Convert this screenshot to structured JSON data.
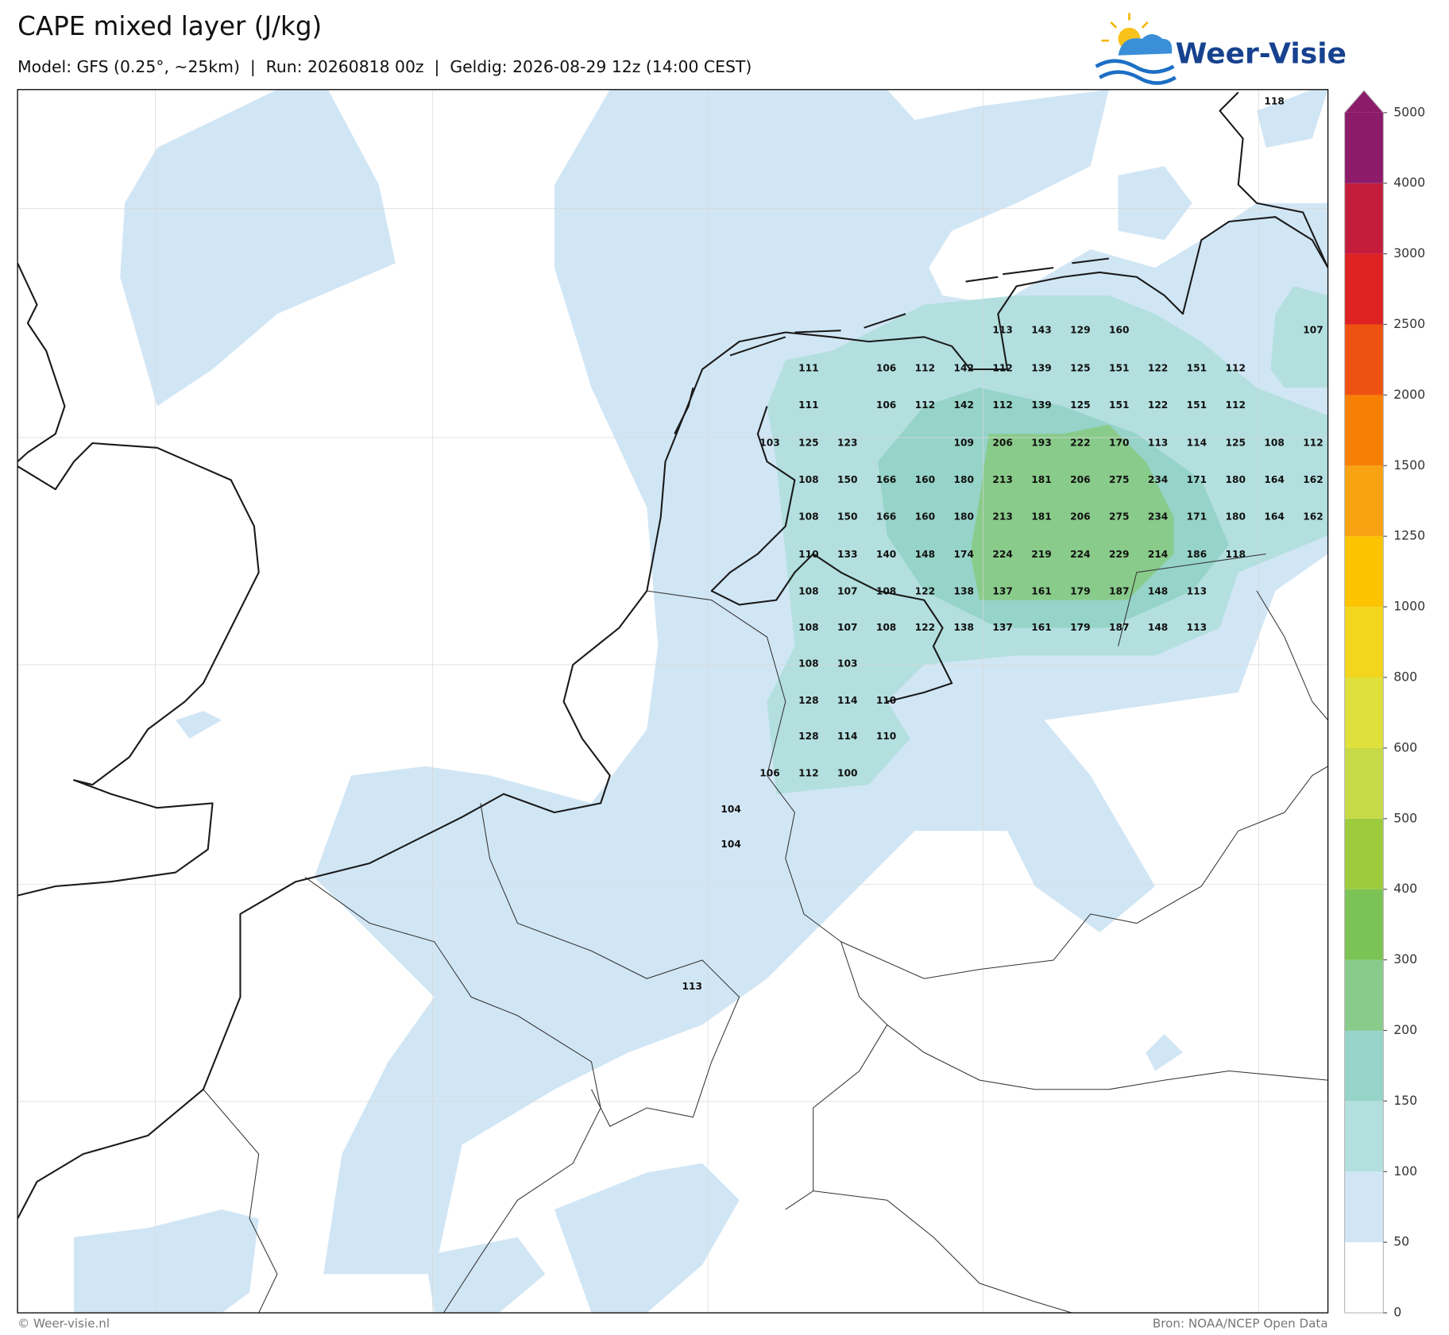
{
  "header": {
    "title": "CAPE mixed layer (J/kg)",
    "subtitle": "Model: GFS (0.25°, ~25km)  |  Run: 20260818 00z  |  Geldig: 2026-08-29 12z (14:00 CEST)"
  },
  "logo": {
    "text": "Weer-Visie"
  },
  "colorbar": {
    "ticks": [
      0,
      50,
      100,
      150,
      200,
      300,
      400,
      500,
      600,
      800,
      1000,
      1250,
      1500,
      2000,
      2500,
      3000,
      4000,
      5000
    ],
    "colors": [
      "#ffffff",
      "#d1e6f5",
      "#b3dfdf",
      "#96d3c8",
      "#89cb8a",
      "#7bc355",
      "#9dcb3e",
      "#c5da46",
      "#dfe03c",
      "#f2d51c",
      "#fbc300",
      "#f9a212",
      "#f78004",
      "#ee5212",
      "#de2121",
      "#c41d3c",
      "#8c1b6a"
    ],
    "extend_color": "#8c1b6a"
  },
  "map": {
    "label_rows": [
      [
        null,
        null,
        null,
        null,
        null,
        null,
        null,
        null,
        null,
        null,
        null,
        null,
        null,
        null,
        null,
        118,
        null
      ],
      [
        null,
        null,
        null,
        null,
        null,
        null,
        null,
        null,
        113,
        143,
        129,
        160,
        null,
        null,
        null,
        null,
        107
      ],
      [
        null,
        null,
        null,
        111,
        null,
        106,
        112,
        142,
        112,
        139,
        125,
        151,
        122,
        151,
        112,
        null,
        null
      ],
      [
        null,
        null,
        null,
        111,
        null,
        106,
        112,
        142,
        112,
        139,
        125,
        151,
        122,
        151,
        112,
        null,
        null
      ],
      [
        null,
        null,
        103,
        125,
        123,
        null,
        null,
        109,
        206,
        193,
        222,
        170,
        113,
        114,
        125,
        108,
        112
      ],
      [
        null,
        null,
        null,
        108,
        150,
        166,
        160,
        180,
        213,
        181,
        206,
        275,
        234,
        171,
        180,
        164,
        162
      ],
      [
        null,
        null,
        null,
        108,
        150,
        166,
        160,
        180,
        213,
        181,
        206,
        275,
        234,
        171,
        180,
        164,
        162
      ],
      [
        null,
        null,
        null,
        110,
        133,
        140,
        148,
        174,
        224,
        219,
        224,
        229,
        214,
        186,
        118,
        null,
        null
      ],
      [
        null,
        null,
        null,
        108,
        107,
        108,
        122,
        138,
        137,
        161,
        179,
        187,
        148,
        113,
        null,
        null,
        null
      ],
      [
        null,
        null,
        null,
        108,
        107,
        108,
        122,
        138,
        137,
        161,
        179,
        187,
        148,
        113,
        null,
        null,
        null
      ],
      [
        null,
        null,
        null,
        108,
        103,
        null,
        null,
        null,
        null,
        null,
        null,
        null,
        null,
        null,
        null,
        null,
        null
      ],
      [
        null,
        null,
        null,
        128,
        114,
        110,
        null,
        null,
        null,
        null,
        null,
        null,
        null,
        null,
        null,
        null,
        null
      ],
      [
        null,
        null,
        null,
        128,
        114,
        110,
        null,
        null,
        null,
        null,
        null,
        null,
        null,
        null,
        null,
        null,
        null
      ],
      [
        null,
        null,
        106,
        112,
        100,
        null,
        null,
        null,
        null,
        null,
        null,
        null,
        null,
        null,
        null,
        null,
        null
      ],
      [
        null,
        104,
        null,
        null,
        null,
        null,
        null,
        null,
        null,
        null,
        null,
        null,
        null,
        null,
        null,
        null,
        null
      ],
      [
        null,
        104,
        null,
        null,
        null,
        null,
        null,
        null,
        null,
        null,
        null,
        null,
        null,
        null,
        null,
        null,
        null
      ],
      [
        113,
        null,
        null,
        null,
        null,
        null,
        null,
        null,
        null,
        null,
        null,
        null,
        null,
        null,
        null,
        null,
        null
      ]
    ]
  },
  "footer": {
    "left": "© Weer-visie.nl",
    "right": "Bron: NOAA/NCEP Open Data"
  }
}
